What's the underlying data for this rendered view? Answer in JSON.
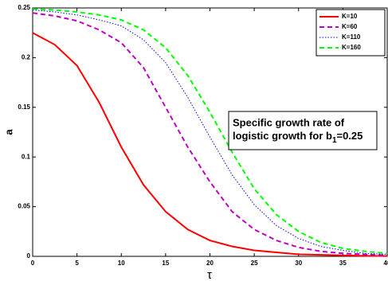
{
  "chart_data": {
    "type": "line",
    "xlabel": "τ",
    "ylabel": "a",
    "annotation": {
      "line1": "Specific growth rate of",
      "line2": "logistic growth for b",
      "subscript": "1",
      "line2_end": "=0.25"
    },
    "x": [
      0,
      2.5,
      5,
      7.5,
      10,
      12.5,
      15,
      17.5,
      20,
      22.5,
      25,
      27.5,
      30,
      32.5,
      35,
      37.5,
      40
    ],
    "series": [
      {
        "name": "K=10",
        "color": "#ff0000",
        "dash": "solid",
        "values": [
          0.225,
          0.213,
          0.192,
          0.155,
          0.11,
          0.072,
          0.045,
          0.027,
          0.016,
          0.01,
          0.006,
          0.004,
          0.002,
          0.0015,
          0.001,
          0.0005,
          0.0003
        ]
      },
      {
        "name": "K=60",
        "color": "#bf00bf",
        "dash": "dashed",
        "values": [
          0.245,
          0.242,
          0.237,
          0.228,
          0.215,
          0.19,
          0.15,
          0.11,
          0.075,
          0.045,
          0.027,
          0.016,
          0.009,
          0.005,
          0.003,
          0.002,
          0.001
        ]
      },
      {
        "name": "K=110",
        "color": "#0000ff",
        "dash": "dotted",
        "values": [
          0.248,
          0.246,
          0.243,
          0.238,
          0.232,
          0.218,
          0.195,
          0.16,
          0.12,
          0.082,
          0.052,
          0.031,
          0.018,
          0.01,
          0.006,
          0.003,
          0.002
        ]
      },
      {
        "name": "K=160",
        "color": "#00ff00",
        "dash": "dashed",
        "values": [
          0.249,
          0.248,
          0.246,
          0.243,
          0.238,
          0.228,
          0.21,
          0.182,
          0.145,
          0.105,
          0.068,
          0.042,
          0.025,
          0.014,
          0.008,
          0.005,
          0.003
        ]
      }
    ],
    "xlim": [
      0,
      40
    ],
    "ylim": [
      0,
      0.25
    ],
    "xticks": [
      0,
      5,
      10,
      15,
      20,
      25,
      30,
      35,
      40
    ],
    "yticks": [
      0,
      0.05,
      0.1,
      0.15,
      0.2,
      0.25
    ],
    "legend": "upper right",
    "grid": false
  }
}
